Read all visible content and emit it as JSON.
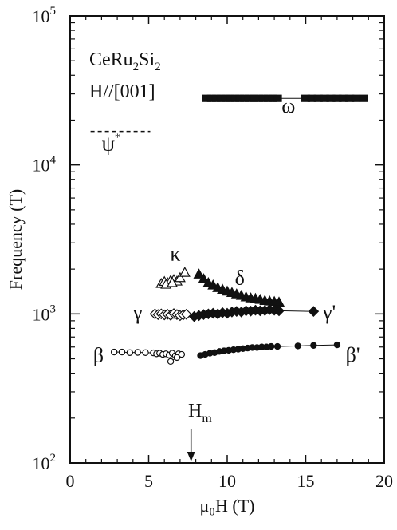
{
  "chart_data": {
    "type": "scatter",
    "title": "",
    "xlabel": "μ₀H (T)",
    "ylabel": "Frequency (T)",
    "xlim": [
      0,
      20
    ],
    "ylim": [
      100,
      100000
    ],
    "yscale": "log",
    "x_ticks": [
      "0",
      "5",
      "10",
      "15",
      "20"
    ],
    "x_tick_values": [
      0,
      5,
      10,
      15,
      20
    ],
    "y_ticks": [
      {
        "value": 100,
        "base": "10",
        "exp": "2"
      },
      {
        "value": 1000,
        "base": "10",
        "exp": "3"
      },
      {
        "value": 10000,
        "base": "10",
        "exp": "4"
      },
      {
        "value": 100000,
        "base": "10",
        "exp": "5"
      }
    ],
    "sample_label": {
      "base": "CeRu",
      "sub1": "2",
      "mid": "Si",
      "sub2": "2"
    },
    "field_direction": "H//[001]",
    "hm_label": {
      "base": "H",
      "sub": "m"
    },
    "hm_value": 7.7,
    "series": [
      {
        "name": "ω",
        "marker": "square-filled",
        "x": [
          8.7,
          9.0,
          9.3,
          9.6,
          9.9,
          10.2,
          10.5,
          10.8,
          11.1,
          11.4,
          11.7,
          12.0,
          12.3,
          12.6,
          12.9,
          13.2,
          15.0,
          15.4,
          15.8,
          16.2,
          16.6,
          17.0,
          17.4,
          17.8,
          18.2,
          18.7
        ],
        "y": [
          28000,
          28000,
          28000,
          28000,
          28000,
          28000,
          28000,
          28000,
          28000,
          28000,
          28000,
          28000,
          28000,
          28000,
          28000,
          28000,
          28000,
          28000,
          28000,
          28000,
          28000,
          28000,
          28000,
          28000,
          28000,
          28000
        ]
      },
      {
        "name": "ψ*",
        "marker": "dashed-line",
        "x": [
          1.3,
          5.1
        ],
        "y": [
          16800,
          16800
        ]
      },
      {
        "name": "κ",
        "marker": "triangle-open",
        "x": [
          5.8,
          6.0,
          6.2,
          6.4,
          6.6,
          6.8,
          7.0,
          7.3,
          6.1,
          6.5
        ],
        "y": [
          1600,
          1650,
          1620,
          1680,
          1700,
          1660,
          1750,
          1900,
          1580,
          1620
        ]
      },
      {
        "name": "δ",
        "marker": "triangle-filled",
        "x": [
          8.2,
          8.5,
          8.8,
          9.1,
          9.4,
          9.7,
          10.0,
          10.3,
          10.6,
          10.9,
          11.2,
          11.5,
          11.8,
          12.1,
          12.4,
          12.7,
          13.0,
          13.3
        ],
        "y": [
          1850,
          1720,
          1620,
          1560,
          1500,
          1460,
          1420,
          1390,
          1360,
          1330,
          1300,
          1280,
          1270,
          1250,
          1230,
          1220,
          1210,
          1200
        ]
      },
      {
        "name": "γ",
        "marker": "diamond-open",
        "x": [
          5.4,
          5.6,
          5.8,
          6.0,
          6.2,
          6.4,
          6.6,
          6.8,
          7.0,
          7.2,
          7.4
        ],
        "y": [
          1000,
          990,
          1000,
          985,
          995,
          980,
          1005,
          990,
          975,
          985,
          995
        ]
      },
      {
        "name": "γ'",
        "marker": "diamond-filled",
        "x": [
          7.9,
          8.2,
          8.5,
          8.8,
          9.1,
          9.4,
          9.7,
          10.0,
          10.3,
          10.6,
          10.9,
          11.2,
          11.5,
          11.8,
          12.1,
          12.4,
          12.7,
          13.0,
          13.3,
          15.5
        ],
        "y": [
          960,
          975,
          990,
          1000,
          1010,
          1000,
          1020,
          1010,
          1030,
          1040,
          1030,
          1050,
          1045,
          1060,
          1050,
          1055,
          1070,
          1060,
          1050,
          1040
        ]
      },
      {
        "name": "β",
        "marker": "circle-open",
        "x": [
          2.8,
          3.3,
          3.8,
          4.3,
          4.8,
          5.3,
          5.5,
          5.7,
          5.9,
          6.1,
          6.3,
          6.5,
          6.7,
          6.9,
          7.1,
          6.4,
          6.8
        ],
        "y": [
          555,
          555,
          550,
          552,
          550,
          548,
          540,
          545,
          535,
          540,
          530,
          545,
          525,
          540,
          535,
          480,
          510
        ]
      },
      {
        "name": "β'",
        "marker": "circle-filled",
        "x": [
          8.3,
          8.6,
          8.9,
          9.2,
          9.5,
          9.8,
          10.1,
          10.4,
          10.7,
          11.0,
          11.3,
          11.6,
          11.9,
          12.2,
          12.5,
          12.8,
          13.2,
          14.5,
          15.5,
          17.0
        ],
        "y": [
          525,
          535,
          545,
          550,
          560,
          565,
          570,
          575,
          580,
          585,
          590,
          595,
          595,
          600,
          600,
          605,
          605,
          610,
          615,
          620
        ]
      }
    ],
    "series_labels": [
      {
        "series": 0,
        "text": "ω"
      },
      {
        "series": 1,
        "text": "ψ",
        "sup": "*"
      },
      {
        "series": 2,
        "text": "κ"
      },
      {
        "series": 3,
        "text": "δ"
      },
      {
        "series": 4,
        "text": "γ"
      },
      {
        "series": 5,
        "text": "γ'"
      },
      {
        "series": 6,
        "text": "β"
      },
      {
        "series": 7,
        "text": "β'"
      }
    ],
    "grid": false,
    "legend": "none"
  }
}
